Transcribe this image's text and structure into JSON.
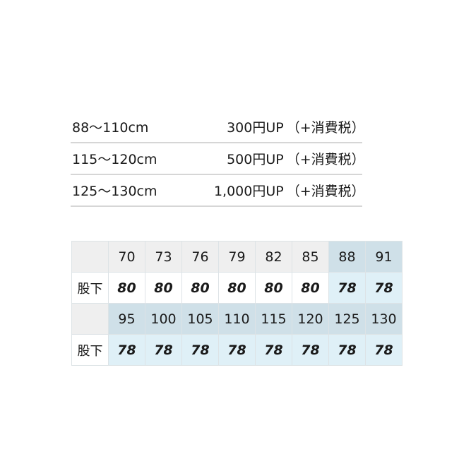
{
  "price_rows": [
    {
      "range": "88〜110cm",
      "amount": "300円UP",
      "tax": "（+消費税）"
    },
    {
      "range": "115〜120cm",
      "amount": "500円UP",
      "tax": "（+消費税）"
    },
    {
      "range": "125〜130cm",
      "amount": "1,000円UP",
      "tax": "（+消費税）"
    }
  ],
  "colors": {
    "header_gray": "#efefef",
    "header_blue": "#cfe0e8",
    "value_blue": "#dff0f7"
  },
  "size_table": [
    {
      "label": "股下",
      "waists": [
        "70",
        "73",
        "76",
        "79",
        "82",
        "85",
        "88",
        "91"
      ],
      "inseams": [
        "80",
        "80",
        "80",
        "80",
        "80",
        "80",
        "78",
        "78"
      ],
      "highlighted": [
        false,
        false,
        false,
        false,
        false,
        false,
        true,
        true
      ]
    },
    {
      "label": "股下",
      "waists": [
        "95",
        "100",
        "105",
        "110",
        "115",
        "120",
        "125",
        "130"
      ],
      "inseams": [
        "78",
        "78",
        "78",
        "78",
        "78",
        "78",
        "78",
        "78"
      ],
      "highlighted": [
        true,
        true,
        true,
        true,
        true,
        true,
        true,
        true
      ]
    }
  ]
}
